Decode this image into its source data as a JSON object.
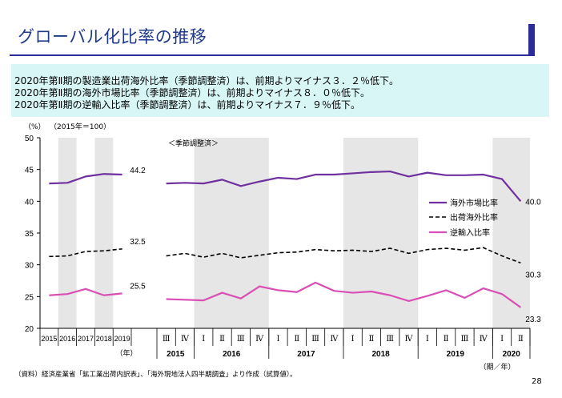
{
  "page": {
    "title": "グローバル化比率の推移",
    "summary": [
      "2020年第Ⅱ期の製造業出荷海外比率（季節調整済）は、前期よりマイナス３．２％低下。",
      "2020年第Ⅱ期の海外市場比率（季節調整済）は、前期よりマイナス８．０％低下。",
      "2020年第Ⅱ期の逆輸入比率（季節調整済）は、前期よりマイナス７．９％低下。"
    ],
    "footnote": "（資料）経済産業省「鉱工業出荷内訳表」、「海外現地法人四半期調査」より作成（試算値）。",
    "page_number": "28"
  },
  "chart_data": {
    "type": "line",
    "ylabel": "（%）",
    "index_note": "（2015年＝100）",
    "seasonal_note": "＜季節調整済＞",
    "ylim": [
      20,
      50
    ],
    "yticks": [
      20,
      25,
      30,
      35,
      40,
      45,
      50
    ],
    "annual": {
      "categories": [
        "2015",
        "2016",
        "2017",
        "2018",
        "2019"
      ],
      "axis_unit": "（年）"
    },
    "quarterly": {
      "categories": [
        "Ⅲ",
        "Ⅳ",
        "Ⅰ",
        "Ⅱ",
        "Ⅲ",
        "Ⅳ",
        "Ⅰ",
        "Ⅱ",
        "Ⅲ",
        "Ⅳ",
        "Ⅰ",
        "Ⅱ",
        "Ⅲ",
        "Ⅳ",
        "Ⅰ",
        "Ⅱ",
        "Ⅲ",
        "Ⅳ",
        "Ⅰ",
        "Ⅱ"
      ],
      "years": [
        "2015",
        "2016",
        "2017",
        "2018",
        "2019",
        "2020"
      ],
      "axis_unit": "（期／年）"
    },
    "series": [
      {
        "name": "海外市場比率",
        "color": "#7030a0",
        "style": "solid",
        "annual": [
          42.8,
          42.9,
          43.9,
          44.3,
          44.2
        ],
        "quarterly": [
          42.8,
          42.9,
          42.8,
          43.4,
          42.4,
          43.1,
          43.7,
          43.5,
          44.2,
          44.2,
          44.4,
          44.6,
          44.7,
          43.9,
          44.5,
          44.1,
          44.1,
          44.2,
          43.5,
          40.0
        ],
        "annual_label": "44.2",
        "end_label": "40.0"
      },
      {
        "name": "出荷海外比率",
        "color": "#000000",
        "style": "dashed",
        "annual": [
          31.3,
          31.4,
          32.1,
          32.2,
          32.5
        ],
        "quarterly": [
          31.4,
          31.8,
          31.2,
          31.8,
          31.1,
          31.5,
          31.9,
          32.0,
          32.4,
          32.2,
          32.3,
          32.1,
          32.6,
          31.8,
          32.4,
          32.6,
          32.3,
          32.7,
          31.4,
          30.3
        ],
        "annual_label": "32.5",
        "end_label": "30.3"
      },
      {
        "name": "逆輸入比率",
        "color": "#d94fb5",
        "style": "solid",
        "annual": [
          25.2,
          25.4,
          26.2,
          25.2,
          25.5
        ],
        "quarterly": [
          24.6,
          24.5,
          24.4,
          25.6,
          24.7,
          26.6,
          26.0,
          25.7,
          27.2,
          25.9,
          25.6,
          25.8,
          25.2,
          24.3,
          25.1,
          26.0,
          24.8,
          26.3,
          25.4,
          23.3
        ],
        "annual_label": "25.5",
        "end_label": "23.3"
      }
    ]
  }
}
